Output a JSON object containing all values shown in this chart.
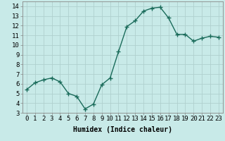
{
  "x": [
    0,
    1,
    2,
    3,
    4,
    5,
    6,
    7,
    8,
    9,
    10,
    11,
    12,
    13,
    14,
    15,
    16,
    17,
    18,
    19,
    20,
    21,
    22,
    23
  ],
  "y": [
    5.4,
    6.1,
    6.4,
    6.6,
    6.2,
    5.0,
    4.7,
    3.4,
    3.9,
    5.9,
    6.6,
    9.3,
    11.9,
    12.5,
    13.5,
    13.8,
    13.9,
    12.8,
    11.1,
    11.1,
    10.4,
    10.7,
    10.9,
    10.8
  ],
  "line_color": "#1a6b5a",
  "marker": "+",
  "marker_size": 4,
  "bg_color": "#c8eae8",
  "grid_color": "#b0d0ce",
  "title": "",
  "xlabel": "Humidex (Indice chaleur)",
  "ylabel": "",
  "xlim": [
    -0.5,
    23.5
  ],
  "ylim": [
    3,
    14.5
  ],
  "xticks": [
    0,
    1,
    2,
    3,
    4,
    5,
    6,
    7,
    8,
    9,
    10,
    11,
    12,
    13,
    14,
    15,
    16,
    17,
    18,
    19,
    20,
    21,
    22,
    23
  ],
  "yticks": [
    3,
    4,
    5,
    6,
    7,
    8,
    9,
    10,
    11,
    12,
    13,
    14
  ],
  "xlabel_fontsize": 7,
  "tick_fontsize": 6.5,
  "line_width": 1.0
}
